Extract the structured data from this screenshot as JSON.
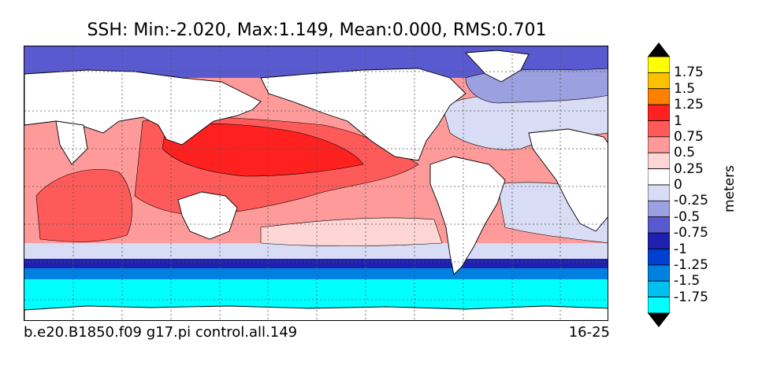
{
  "title": "SSH: Min:-2.020, Max:1.149, Mean:0.000, RMS:0.701",
  "footer": {
    "case_name": "b.e20.B1850.f09 g17.pi control.all.149",
    "years": "16-25"
  },
  "colorbar": {
    "units": "meters",
    "extend": "both",
    "levels": [
      -1.75,
      -1.5,
      -1.25,
      -1,
      -0.75,
      -0.5,
      -0.25,
      0,
      0.25,
      0.5,
      0.75,
      1,
      1.25,
      1.5,
      1.75
    ],
    "tick_labels": [
      "1.75",
      "1.5",
      "1.25",
      "1",
      "0.75",
      "0.5",
      "0.25",
      "0",
      "-0.25",
      "-0.5",
      "-0.75",
      "-1",
      "-1.25",
      "-1.5",
      "-1.75"
    ],
    "colors_top_to_bottom": [
      "#ffff00",
      "#ffc000",
      "#ff8000",
      "#ff2020",
      "#ff5a5a",
      "#ff9a9a",
      "#ffd6d6",
      "#ffffff",
      "#d8dcf4",
      "#9aa0e0",
      "#5a5ad0",
      "#2020b0",
      "#0040d0",
      "#0080e0",
      "#00c0f0",
      "#00ffff"
    ],
    "over_color": "#000000",
    "under_color": "#000000"
  },
  "map": {
    "projection": "cylindrical, 30E to 30E",
    "grid": "dotted lat/lon lines",
    "land_color": "#ffffff",
    "coastline_color": "#000000",
    "features": [
      "ocean-ssh-field",
      "land-masses",
      "coastlines",
      "gridlines"
    ]
  }
}
